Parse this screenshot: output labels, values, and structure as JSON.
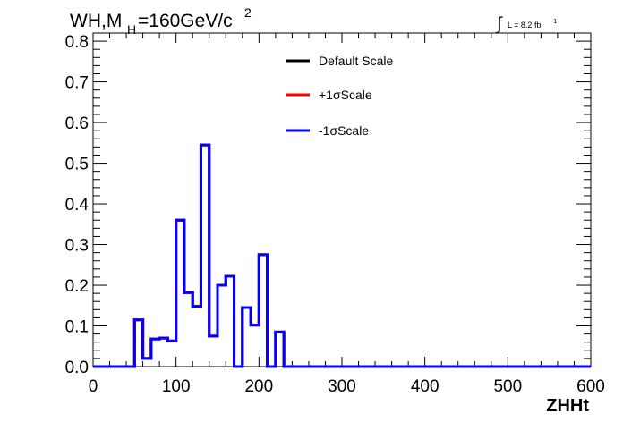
{
  "title": {
    "main": "WH,M",
    "subscript": "H",
    "rest": "=160GeV/c",
    "superscript": "2"
  },
  "lumi": {
    "integral_sign": "∫",
    "text": "L = 8.2 fb",
    "exponent": "-1"
  },
  "colors": {
    "default": "#000000",
    "plus": "#ff0000",
    "minus": "#0000ff"
  },
  "chart_data": {
    "type": "line",
    "style": "step-histogram",
    "xlabel": "ZHHt",
    "ylabel": "",
    "xlim": [
      0,
      600
    ],
    "ylim": [
      0,
      0.82
    ],
    "xticks": [
      0,
      100,
      200,
      300,
      400,
      500,
      600
    ],
    "yticks": [
      0.0,
      0.1,
      0.2,
      0.3,
      0.4,
      0.5,
      0.6,
      0.7,
      0.8
    ],
    "ytick_labels": [
      "0.0",
      "0.1",
      "0.2",
      "0.3",
      "0.4",
      "0.5",
      "0.6",
      "0.7",
      "0.8"
    ],
    "bin_edges": [
      0,
      10,
      20,
      30,
      40,
      50,
      60,
      70,
      80,
      90,
      100,
      110,
      120,
      130,
      140,
      150,
      160,
      170,
      180,
      190,
      200,
      210,
      220,
      230,
      240,
      250,
      260,
      270,
      280,
      290,
      300,
      310,
      320,
      330,
      340,
      350,
      360,
      370,
      380,
      390,
      400,
      410,
      420,
      430,
      440,
      450,
      460,
      470,
      480,
      490,
      500,
      510,
      520,
      530,
      540,
      550,
      560,
      570,
      580,
      590,
      600
    ],
    "legend_position": "top-center",
    "series": [
      {
        "name": "Default Scale",
        "color": "#000000",
        "values": [
          0,
          0,
          0,
          0,
          0,
          0.115,
          0.02,
          0.068,
          0.07,
          0.063,
          0.36,
          0.182,
          0.148,
          0.545,
          0.075,
          0.2,
          0.222,
          0,
          0.145,
          0.102,
          0.275,
          0,
          0.085,
          0,
          0,
          0,
          0,
          0,
          0,
          0,
          0,
          0,
          0,
          0,
          0,
          0,
          0,
          0,
          0,
          0,
          0,
          0,
          0,
          0,
          0,
          0,
          0,
          0,
          0,
          0,
          0,
          0,
          0,
          0,
          0,
          0,
          0,
          0,
          0,
          0
        ]
      },
      {
        "name": "+1σScale",
        "color": "#ff0000",
        "values": [
          0,
          0,
          0,
          0,
          0,
          0.115,
          0.02,
          0.068,
          0.07,
          0.063,
          0.36,
          0.182,
          0.148,
          0.545,
          0.075,
          0.2,
          0.222,
          0,
          0.145,
          0.102,
          0.275,
          0,
          0.085,
          0,
          0,
          0,
          0,
          0,
          0,
          0,
          0,
          0,
          0,
          0,
          0,
          0,
          0,
          0,
          0,
          0,
          0,
          0,
          0,
          0,
          0,
          0,
          0,
          0,
          0,
          0,
          0,
          0,
          0,
          0,
          0,
          0,
          0,
          0,
          0,
          0
        ]
      },
      {
        "name": "-1σScale",
        "color": "#0000ff",
        "values": [
          0,
          0,
          0,
          0,
          0,
          0.115,
          0.02,
          0.068,
          0.07,
          0.063,
          0.36,
          0.182,
          0.148,
          0.545,
          0.075,
          0.2,
          0.222,
          0,
          0.145,
          0.102,
          0.275,
          0,
          0.085,
          0,
          0,
          0,
          0,
          0,
          0,
          0,
          0,
          0,
          0,
          0,
          0,
          0,
          0,
          0,
          0,
          0,
          0,
          0,
          0,
          0,
          0,
          0,
          0,
          0,
          0,
          0,
          0,
          0,
          0,
          0,
          0,
          0,
          0,
          0,
          0,
          0
        ]
      }
    ]
  }
}
